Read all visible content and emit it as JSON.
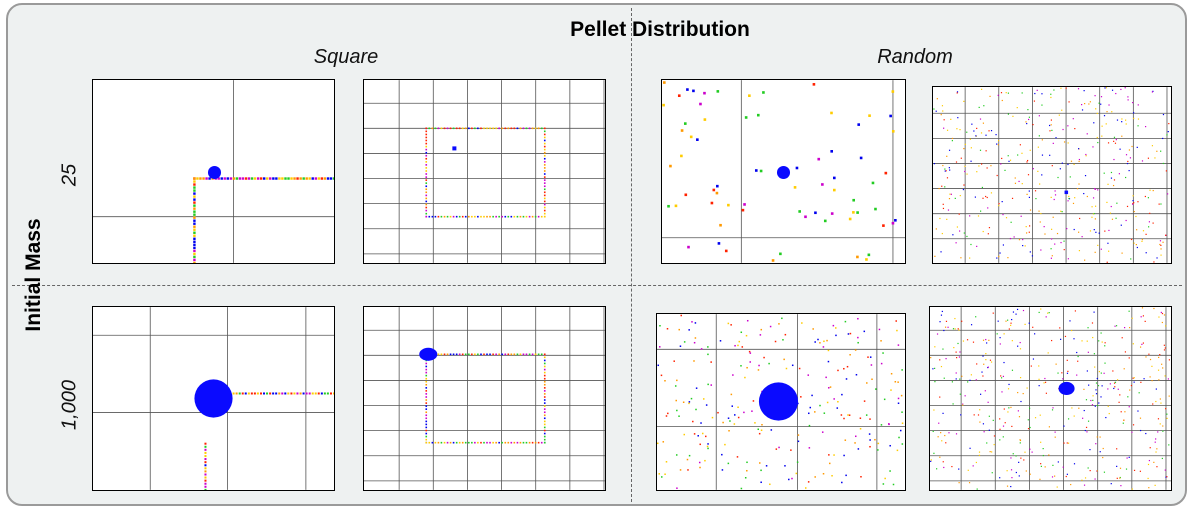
{
  "figure": {
    "title": "Pellet Distribution",
    "column_labels": [
      "Square",
      "Random"
    ],
    "row_title": "Initial Mass",
    "row_labels": [
      "25",
      "1,000"
    ]
  },
  "colors": {
    "body": "#0a0aff",
    "grid": "#555555",
    "pellet_palette": [
      "#ff2200",
      "#ff9900",
      "#22cc22",
      "#0000ee",
      "#cc00cc",
      "#ffcc00"
    ]
  },
  "panels": [
    {
      "id": "sq25-zoom",
      "kind": "square-zoom",
      "body_mass": 25
    },
    {
      "id": "sq25-wide",
      "kind": "square-wide",
      "body_mass": 25
    },
    {
      "id": "rand25-zoom",
      "kind": "random-zoom",
      "body_mass": 25
    },
    {
      "id": "rand25-wide",
      "kind": "random-wide",
      "body_mass": 25
    },
    {
      "id": "sq1000-zoom",
      "kind": "square-zoom",
      "body_mass": 1000
    },
    {
      "id": "sq1000-wide",
      "kind": "square-wide",
      "body_mass": 1000
    },
    {
      "id": "rand1000-zoom",
      "kind": "random-zoom",
      "body_mass": 1000
    },
    {
      "id": "rand1000-wide",
      "kind": "random-wide",
      "body_mass": 1000
    }
  ]
}
